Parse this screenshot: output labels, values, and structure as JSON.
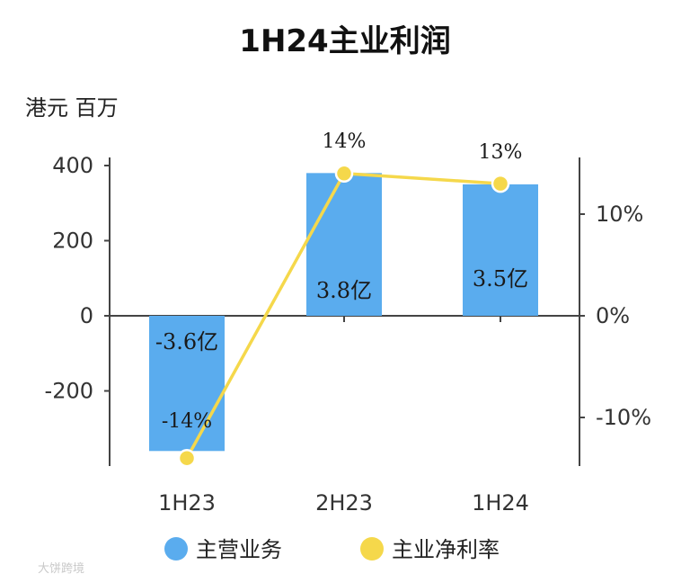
{
  "chart_data": {
    "type": "bar",
    "title": "1H24主业利润",
    "unit_label": "港元 百万",
    "categories": [
      "1H23",
      "2H23",
      "1H24"
    ],
    "series": [
      {
        "name": "主营业务",
        "kind": "bar",
        "axis": "left",
        "color": "#5aacee",
        "values": [
          -360,
          380,
          350
        ],
        "labels": [
          "-3.6亿",
          "3.8亿",
          "3.5亿"
        ]
      },
      {
        "name": "主业净利率",
        "kind": "line",
        "axis": "right",
        "color": "#f5d84b",
        "values": [
          -14,
          14,
          13
        ],
        "labels": [
          "-14%",
          "14%",
          "13%"
        ]
      }
    ],
    "left_axis": {
      "ylim": [
        -400,
        400
      ],
      "ticks": [
        400,
        200,
        0,
        -200
      ],
      "tick_labels": [
        "400",
        "200",
        "0",
        "-200"
      ]
    },
    "right_axis": {
      "ylim": [
        -15,
        15
      ],
      "ticks": [
        10,
        0,
        -10
      ],
      "tick_labels": [
        "10%",
        "0%",
        "-10%"
      ]
    },
    "legend": {
      "position": "bottom"
    }
  },
  "watermark": "大饼跨境"
}
